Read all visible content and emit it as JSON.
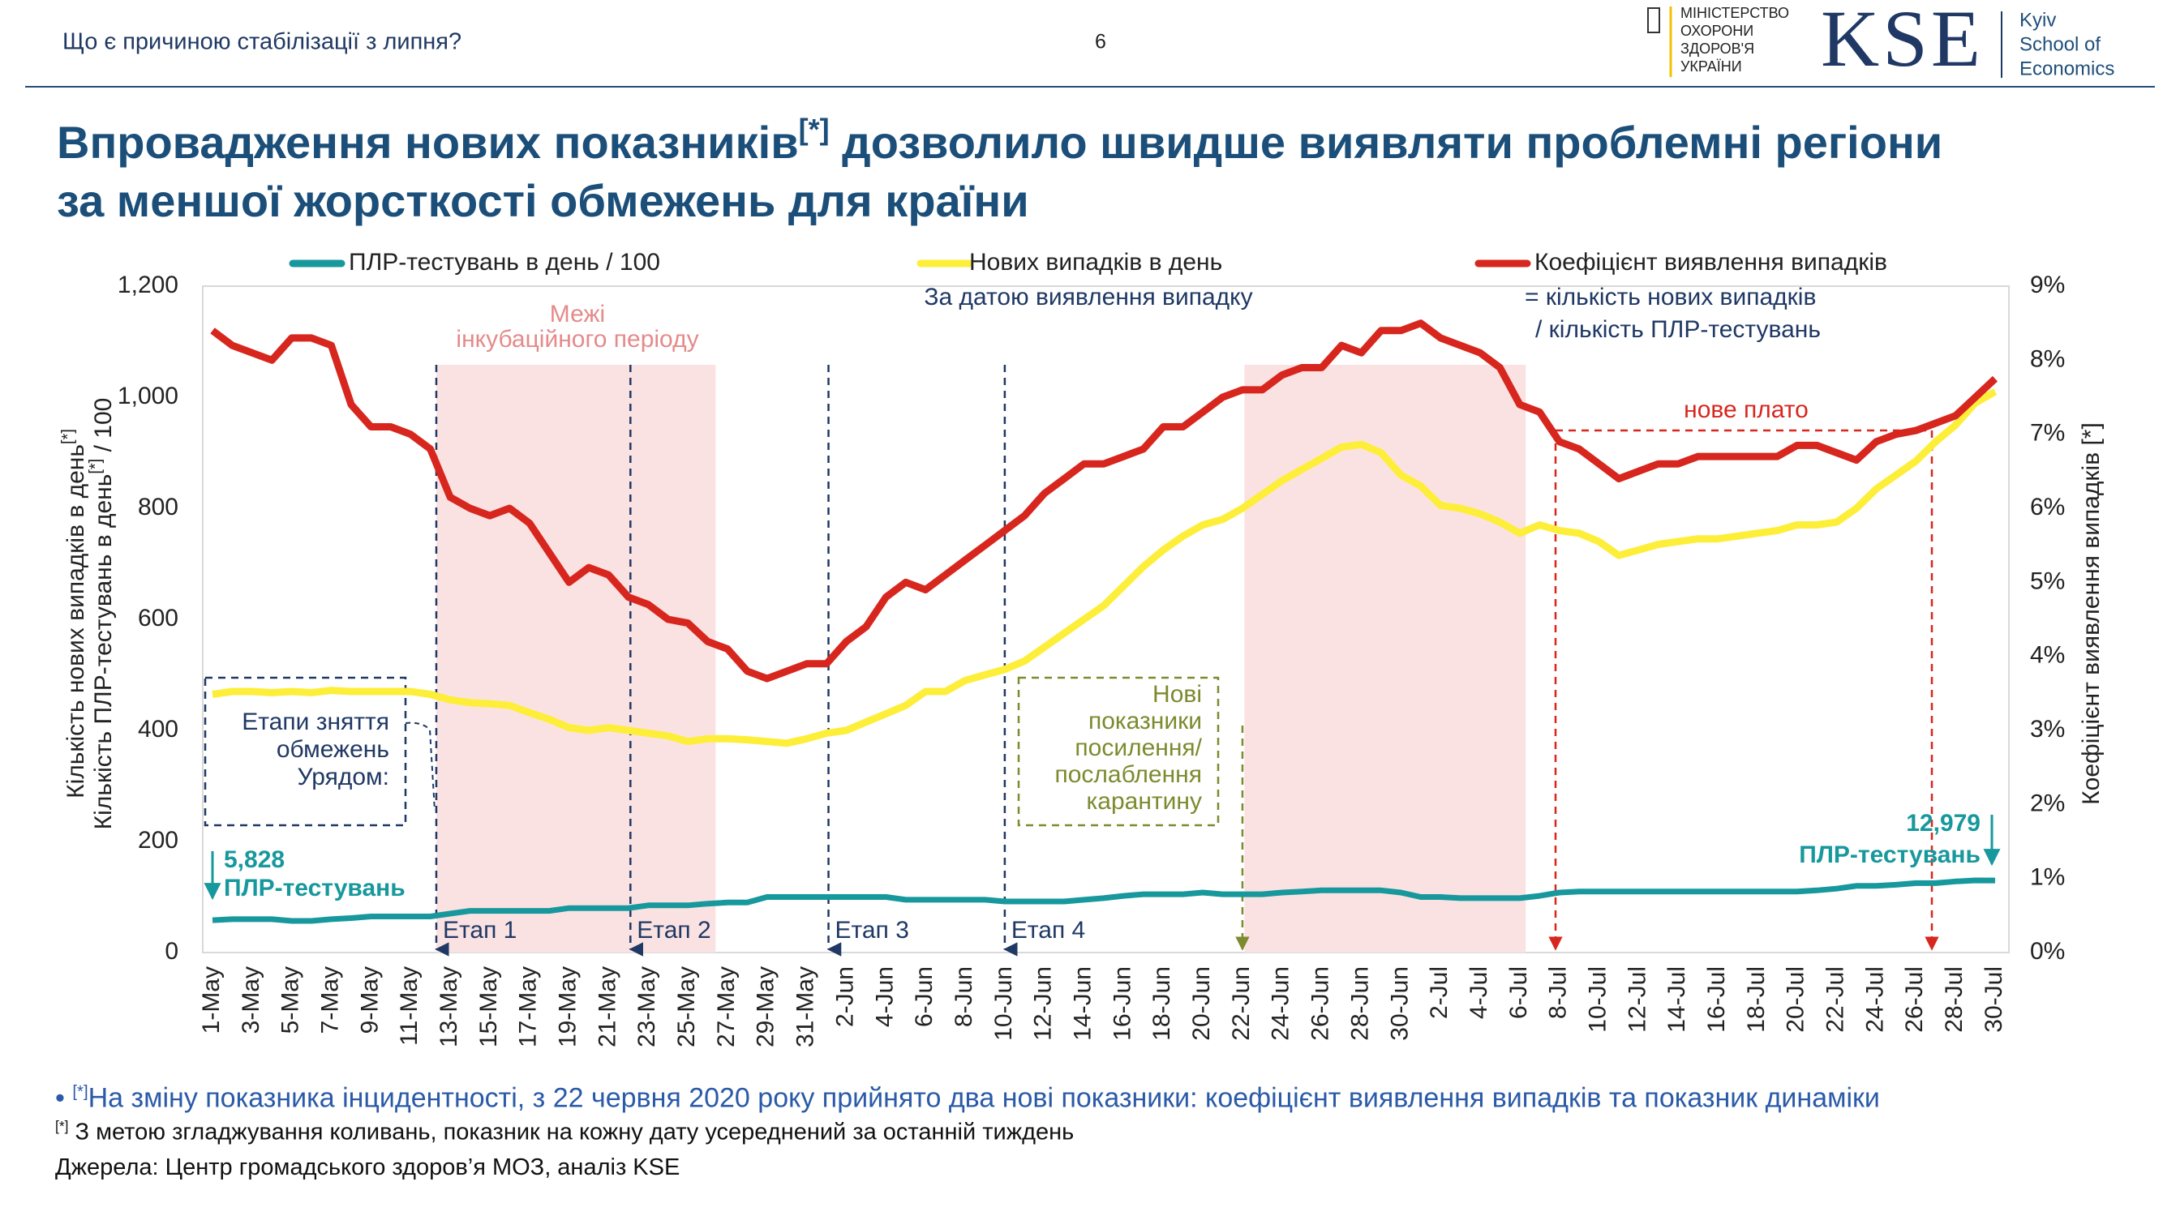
{
  "header": {
    "topic": "Що є причиною стабілізації з липня?",
    "page": "6",
    "ministry": [
      "МІНІСТЕРСТВО",
      "ОХОРОНИ",
      "ЗДОРОВ'Я",
      "УКРАЇНИ"
    ],
    "logo": "KSE",
    "school": [
      "Kyiv",
      "School of",
      "Economics"
    ]
  },
  "title": {
    "line1_start": "Впровадження нових показників",
    "sup": "[*]",
    "line1_end": " дозволило швидше виявляти проблемні регіони",
    "line2": "за меншої жорсткості обмежень для країни"
  },
  "chart_data": {
    "type": "line",
    "ylabel": [
      {
        "text": "Кількість нових випадків в день",
        "sup": "[*]"
      },
      {
        "text": "Кількість ПЛР-тестувань в день",
        "sup": "[*]",
        "after": " / 100"
      }
    ],
    "y2label": "Коефіцієнт виявлення випадків [*]",
    "ylim": [
      0,
      1200
    ],
    "yticks": [
      0,
      200,
      400,
      600,
      800,
      {
        "value": 1000,
        "label": "1,000"
      },
      {
        "value": 1200,
        "label": "1,200"
      }
    ],
    "y2lim": [
      0,
      9
    ],
    "y2ticks": [
      {
        "value": 0,
        "label": "0%"
      },
      {
        "value": 1,
        "label": "1%"
      },
      {
        "value": 2,
        "label": "2%"
      },
      {
        "value": 3,
        "label": "3%"
      },
      {
        "value": 4,
        "label": "4%"
      },
      {
        "value": 5,
        "label": "5%"
      },
      {
        "value": 6,
        "label": "6%"
      },
      {
        "value": 7,
        "label": "7%"
      },
      {
        "value": 8,
        "label": "8%"
      },
      {
        "value": 9,
        "label": "9%"
      }
    ],
    "grid": false,
    "categories": [
      "1-May",
      null,
      "3-May",
      null,
      "5-May",
      null,
      "7-May",
      null,
      "9-May",
      null,
      "11-May",
      null,
      "13-May",
      null,
      "15-May",
      null,
      "17-May",
      null,
      "19-May",
      null,
      "21-May",
      null,
      "23-May",
      null,
      "25-May",
      null,
      "27-May",
      null,
      "29-May",
      null,
      "31-May",
      null,
      "2-Jun",
      null,
      "4-Jun",
      null,
      "6-Jun",
      null,
      "8-Jun",
      null,
      "10-Jun",
      null,
      "12-Jun",
      null,
      "14-Jun",
      null,
      "16-Jun",
      null,
      "18-Jun",
      null,
      "20-Jun",
      null,
      "22-Jun",
      null,
      "24-Jun",
      null,
      "26-Jun",
      null,
      "28-Jun",
      null,
      "30-Jun",
      null,
      "2-Jul",
      null,
      "4-Jul",
      null,
      "6-Jul",
      null,
      "8-Jul",
      null,
      "10-Jul",
      null,
      "12-Jul",
      null,
      "14-Jul",
      null,
      "16-Jul",
      null,
      "18-Jul",
      null,
      "20-Jul",
      null,
      "22-Jul",
      null,
      "24-Jul",
      null,
      "26-Jul",
      null,
      "28-Jul",
      null,
      "30-Jul"
    ],
    "series": [
      {
        "name": "ПЛР-тестувань в день / 100",
        "color": "#17989d",
        "axis": "y",
        "values": [
          58.28,
          60,
          60,
          60,
          57,
          57,
          60,
          62,
          65,
          65,
          65,
          65,
          70,
          75,
          75,
          75,
          75,
          75,
          80,
          80,
          80,
          80,
          85,
          85,
          85,
          88,
          90,
          90,
          100,
          100,
          100,
          100,
          100,
          100,
          100,
          95,
          95,
          95,
          95,
          95,
          92,
          92,
          92,
          92,
          95,
          98,
          102,
          105,
          105,
          105,
          108,
          105,
          105,
          105,
          108,
          110,
          112,
          112,
          112,
          112,
          108,
          100,
          100,
          98,
          98,
          98,
          98,
          102,
          108,
          110,
          110,
          110,
          110,
          110,
          110,
          110,
          110,
          110,
          110,
          110,
          110,
          112,
          115,
          120,
          120,
          122,
          125,
          125,
          128,
          130,
          129.79
        ],
        "value_labels": [
          "5,828",
          null,
          null,
          null,
          null,
          null,
          null,
          null,
          null,
          null,
          null,
          null,
          null,
          null,
          null,
          null,
          null,
          null,
          null,
          null,
          null,
          null,
          null,
          null,
          null,
          null,
          null,
          null,
          null,
          null,
          null,
          null,
          null,
          null,
          null,
          null,
          null,
          null,
          null,
          null,
          null,
          null,
          null,
          null,
          null,
          null,
          null,
          null,
          null,
          null,
          null,
          null,
          null,
          null,
          null,
          null,
          null,
          null,
          null,
          null,
          null,
          null,
          null,
          null,
          null,
          null,
          null,
          null,
          null,
          null,
          null,
          null,
          null,
          null,
          null,
          null,
          null,
          null,
          null,
          null,
          null,
          null,
          null,
          null,
          null,
          null,
          null,
          null,
          null,
          null,
          "12,979"
        ]
      },
      {
        "name": "Нових випадків в день",
        "color": "#fdee3a",
        "axis": "y",
        "values": [
          465,
          470,
          470,
          468,
          470,
          468,
          472,
          470,
          470,
          470,
          470,
          465,
          455,
          450,
          448,
          445,
          432,
          420,
          405,
          400,
          405,
          400,
          395,
          390,
          380,
          385,
          385,
          383,
          380,
          377,
          385,
          395,
          400,
          415,
          430,
          445,
          470,
          470,
          490,
          500,
          510,
          525,
          550,
          575,
          600,
          625,
          660,
          695,
          725,
          750,
          770,
          780,
          800,
          825,
          850,
          870,
          890,
          910,
          915,
          900,
          860,
          840,
          805,
          800,
          790,
          775,
          755,
          770,
          760,
          755,
          740,
          715,
          725,
          735,
          740,
          745,
          745,
          750,
          755,
          760,
          770,
          770,
          775,
          800,
          835,
          860,
          885,
          920,
          950,
          990,
          1010
        ]
      },
      {
        "name": "Коефіцієнт виявлення випадків",
        "color": "#d7261e",
        "axis": "y2",
        "values": [
          8.4,
          8.2,
          8.1,
          8.0,
          8.3,
          8.3,
          8.2,
          7.4,
          7.1,
          7.1,
          7.0,
          6.8,
          6.15,
          6.0,
          5.9,
          6.0,
          5.8,
          5.4,
          5.0,
          5.2,
          5.1,
          4.8,
          4.7,
          4.5,
          4.45,
          4.2,
          4.1,
          3.8,
          3.7,
          3.8,
          3.9,
          3.9,
          4.2,
          4.4,
          4.8,
          5.0,
          4.9,
          5.1,
          5.3,
          5.5,
          5.7,
          5.9,
          6.2,
          6.4,
          6.6,
          6.6,
          6.7,
          6.8,
          7.1,
          7.1,
          7.3,
          7.5,
          7.6,
          7.6,
          7.8,
          7.9,
          7.9,
          8.2,
          8.1,
          8.4,
          8.4,
          8.5,
          8.3,
          8.2,
          8.1,
          7.9,
          7.4,
          7.3,
          6.9,
          6.8,
          6.6,
          6.4,
          6.5,
          6.6,
          6.6,
          6.7,
          6.7,
          6.7,
          6.7,
          6.7,
          6.85,
          6.85,
          6.75,
          6.65,
          6.9,
          7.0,
          7.05,
          7.15,
          7.25,
          7.5,
          7.75
        ]
      }
    ],
    "annotations": {
      "method": "За датою виявлення випадку",
      "ratio_def": [
        "= кількість нових випадків",
        "/ кількість ПЛР-тестувань"
      ],
      "incubation": [
        "Межі",
        "інкубаційного періоду"
      ],
      "plateau": "нове плато",
      "stages_box": [
        "Етапи зняття",
        "обмежень",
        "Урядом:"
      ],
      "stages": [
        "Етап 1",
        "Етап 2",
        "Етап 3",
        "Етап 4"
      ],
      "new_indicators": [
        "Нові",
        "показники",
        "посилення/",
        "послаблення",
        "карантину"
      ]
    }
  },
  "notes": [
    {
      "sup": "[*]",
      "text": "На зміну показника інцидентності, з 22 червня 2020 року прийнято два нові показники: коефіцієнт виявлення випадків та показник динаміки"
    },
    {
      "sup": "[*]",
      "text": "З метою згладжування коливань, показник на кожну дату усереднений за останній тиждень"
    }
  ],
  "source": "Джерела: Центр громадського здоров’я МОЗ, аналіз KSE"
}
